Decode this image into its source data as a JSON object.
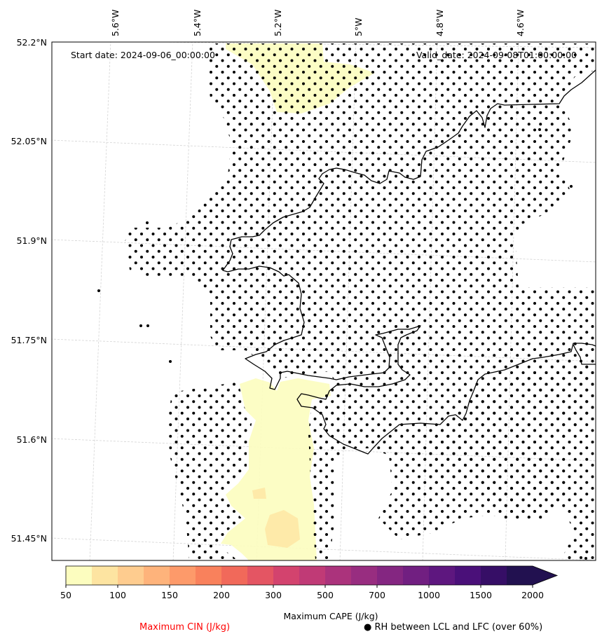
{
  "header": {
    "start_date": "Start date: 2024-09-06_00:00:00",
    "valid_date": "Valid_date: 2024-09-08T01:00:00.00"
  },
  "map": {
    "longitude_labels": [
      "5.6°W",
      "5.4°W",
      "5.2°W",
      "5°W",
      "4.8°W",
      "4.6°W"
    ],
    "latitude_labels": [
      "52.2°N",
      "52.05°N",
      "51.9°N",
      "51.75°N",
      "51.6°N",
      "51.45°N"
    ],
    "extent": {
      "lon_min": -5.75,
      "lon_max": -4.42,
      "lat_min": 51.42,
      "lat_max": 52.2
    },
    "coastline_color": "#000000",
    "gridline_color": "#d0d0d0",
    "stipple_color": "#000000",
    "cape_fill_colors": [
      "#fcfdbf",
      "#fee8a5",
      "#fdd591"
    ]
  },
  "colorbar": {
    "title": "Maximum CAPE (J/kg)",
    "ticks": [
      "50",
      "100",
      "150",
      "200",
      "300",
      "500",
      "700",
      "1000",
      "1500",
      "2000"
    ],
    "colors": [
      "#fcfdbf",
      "#fde4a1",
      "#fecc8f",
      "#feb37b",
      "#fd9a6a",
      "#f9815c",
      "#f1695a",
      "#e45563",
      "#d3436e",
      "#c03a76",
      "#ab337c",
      "#982d80",
      "#842681",
      "#711f81",
      "#5e177f",
      "#4a1079",
      "#360e66",
      "#221150"
    ],
    "extend": "max"
  },
  "legend": {
    "cin_label": "Maximum CIN (J/kg)",
    "cin_color": "#ff0000",
    "rh_marker": "●",
    "rh_label": "RH between LCL and LFC (over 60%)"
  }
}
